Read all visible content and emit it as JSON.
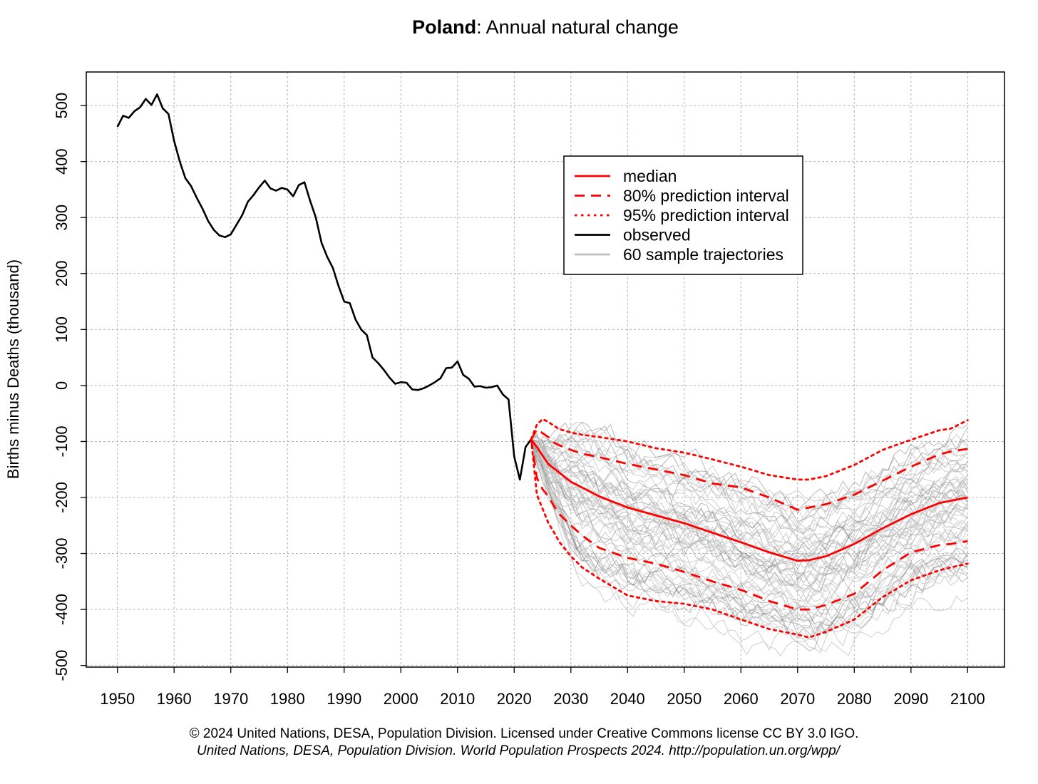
{
  "chart_data": {
    "type": "line",
    "title_bold": "Poland",
    "title_rest": ": Annual natural change",
    "xlabel": "",
    "ylabel": "Births minus Deaths (thousand)",
    "xlim": [
      1944.5,
      2106.5
    ],
    "ylim": [
      -503,
      560
    ],
    "x_ticks": [
      1950,
      1960,
      1970,
      1980,
      1990,
      2000,
      2010,
      2020,
      2030,
      2040,
      2050,
      2060,
      2070,
      2080,
      2090,
      2100
    ],
    "y_ticks": [
      -500,
      -400,
      -300,
      -200,
      -100,
      0,
      100,
      200,
      300,
      400,
      500
    ],
    "grid": true,
    "legend_position": "top-right",
    "legend": [
      {
        "label": "median",
        "color": "#ff0000",
        "style": "solid"
      },
      {
        "label": "80% prediction interval",
        "color": "#ff0000",
        "style": "dashed"
      },
      {
        "label": "95% prediction interval",
        "color": "#ff0000",
        "style": "dotted"
      },
      {
        "label": "observed",
        "color": "#000000",
        "style": "solid"
      },
      {
        "label": "60 sample trajectories",
        "color": "#bebebe",
        "style": "solid"
      }
    ],
    "observed": {
      "x": [
        1950,
        1951,
        1952,
        1953,
        1954,
        1955,
        1956,
        1957,
        1958,
        1959,
        1960,
        1961,
        1962,
        1963,
        1964,
        1965,
        1966,
        1967,
        1968,
        1969,
        1970,
        1971,
        1972,
        1973,
        1974,
        1975,
        1976,
        1977,
        1978,
        1979,
        1980,
        1981,
        1982,
        1983,
        1984,
        1985,
        1986,
        1987,
        1988,
        1989,
        1990,
        1991,
        1992,
        1993,
        1994,
        1995,
        1996,
        1997,
        1998,
        1999,
        2000,
        2001,
        2002,
        2003,
        2004,
        2005,
        2006,
        2007,
        2008,
        2009,
        2010,
        2011,
        2012,
        2013,
        2014,
        2015,
        2016,
        2017,
        2018,
        2019,
        2020,
        2021,
        2022,
        2023
      ],
      "y": [
        462,
        482,
        478,
        490,
        497,
        512,
        501,
        520,
        495,
        485,
        437,
        400,
        370,
        356,
        335,
        316,
        294,
        278,
        268,
        265,
        270,
        287,
        304,
        328,
        340,
        354,
        366,
        352,
        348,
        353,
        350,
        338,
        358,
        363,
        330,
        300,
        255,
        230,
        210,
        178,
        150,
        147,
        118,
        100,
        90,
        50,
        40,
        28,
        14,
        3,
        6,
        5,
        -7,
        -8,
        -5,
        0,
        6,
        13,
        31,
        32,
        43,
        19,
        12,
        -2,
        -1,
        -4,
        -3,
        0,
        -16,
        -25,
        -127,
        -168,
        -110,
        -96
      ]
    },
    "series": [
      {
        "name": "median",
        "x": [
          2023,
          2024,
          2025,
          2026,
          2030,
          2035,
          2040,
          2045,
          2050,
          2055,
          2060,
          2065,
          2070,
          2072,
          2075,
          2080,
          2085,
          2090,
          2095,
          2100
        ],
        "y": [
          -96,
          -110,
          -125,
          -140,
          -172,
          -198,
          -218,
          -232,
          -246,
          -263,
          -280,
          -298,
          -313,
          -312,
          -305,
          -283,
          -255,
          -230,
          -210,
          -200
        ]
      },
      {
        "name": "80% prediction interval",
        "x": [
          2023,
          2024,
          2025,
          2026,
          2027,
          2028,
          2030,
          2032,
          2035,
          2040,
          2045,
          2050,
          2055,
          2060,
          2065,
          2070,
          2072,
          2075,
          2080,
          2085,
          2090,
          2095,
          2097,
          2100
        ],
        "y": [
          -96,
          -78,
          -85,
          -92,
          -102,
          -107,
          -115,
          -122,
          -128,
          -140,
          -150,
          -160,
          -175,
          -182,
          -200,
          -222,
          -218,
          -212,
          -195,
          -170,
          -145,
          -123,
          -118,
          -113
        ]
      },
      {
        "name": "80% prediction interval",
        "x": [
          2023,
          2024,
          2025,
          2026,
          2027,
          2028,
          2030,
          2032,
          2035,
          2040,
          2045,
          2050,
          2055,
          2060,
          2065,
          2070,
          2072,
          2075,
          2080,
          2085,
          2090,
          2095,
          2097,
          2100
        ],
        "y": [
          -96,
          -165,
          -185,
          -198,
          -215,
          -230,
          -250,
          -268,
          -290,
          -308,
          -318,
          -333,
          -350,
          -365,
          -385,
          -400,
          -400,
          -392,
          -372,
          -330,
          -298,
          -285,
          -283,
          -278
        ]
      },
      {
        "name": "95% prediction interval",
        "x": [
          2023,
          2024,
          2025,
          2026,
          2027,
          2028,
          2030,
          2032,
          2035,
          2040,
          2045,
          2050,
          2055,
          2060,
          2065,
          2070,
          2072,
          2075,
          2080,
          2085,
          2090,
          2095,
          2097,
          2100
        ],
        "y": [
          -96,
          -70,
          -60,
          -65,
          -72,
          -78,
          -84,
          -88,
          -92,
          -100,
          -112,
          -120,
          -132,
          -145,
          -160,
          -168,
          -168,
          -162,
          -142,
          -115,
          -97,
          -80,
          -77,
          -62
        ]
      },
      {
        "name": "95% prediction interval",
        "x": [
          2023,
          2024,
          2025,
          2026,
          2027,
          2028,
          2030,
          2032,
          2035,
          2040,
          2045,
          2050,
          2055,
          2060,
          2065,
          2070,
          2072,
          2075,
          2080,
          2085,
          2090,
          2095,
          2097,
          2100
        ],
        "y": [
          -96,
          -195,
          -220,
          -245,
          -262,
          -280,
          -305,
          -325,
          -345,
          -375,
          -385,
          -390,
          -400,
          -418,
          -435,
          -445,
          -450,
          -440,
          -418,
          -378,
          -348,
          -330,
          -325,
          -318
        ]
      }
    ]
  },
  "footer": {
    "line1": "© 2024 United Nations, DESA, Population Division. Licensed under Creative Commons license CC BY 3.0 IGO.",
    "line2": "United Nations, DESA, Population Division. World Population Prospects 2024. http://population.un.org/wpp/"
  }
}
